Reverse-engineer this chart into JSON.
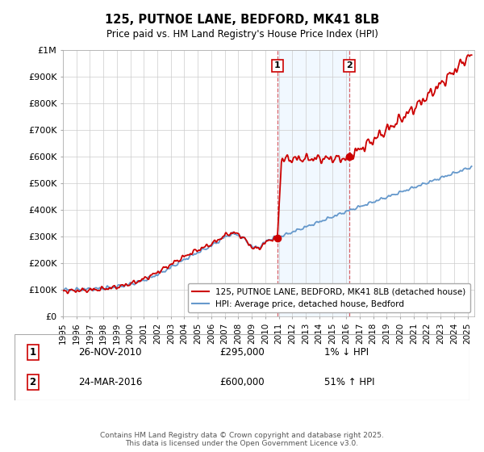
{
  "title": "125, PUTNOE LANE, BEDFORD, MK41 8LB",
  "subtitle": "Price paid vs. HM Land Registry's House Price Index (HPI)",
  "legend_line1": "125, PUTNOE LANE, BEDFORD, MK41 8LB (detached house)",
  "legend_line2": "HPI: Average price, detached house, Bedford",
  "sale1_label": "1",
  "sale1_date": "26-NOV-2010",
  "sale1_price": "£295,000",
  "sale1_hpi": "1% ↓ HPI",
  "sale1_year": 2010.9,
  "sale1_value": 295000,
  "sale2_label": "2",
  "sale2_date": "24-MAR-2016",
  "sale2_price": "£600,000",
  "sale2_hpi": "51% ↑ HPI",
  "sale2_year": 2016.23,
  "sale2_value": 600000,
  "ylim": [
    0,
    1000000
  ],
  "xlim": [
    1995,
    2025.5
  ],
  "yticks": [
    0,
    100000,
    200000,
    300000,
    400000,
    500000,
    600000,
    700000,
    800000,
    900000,
    1000000
  ],
  "ytick_labels": [
    "£0",
    "£100K",
    "£200K",
    "£300K",
    "£400K",
    "£500K",
    "£600K",
    "£700K",
    "£800K",
    "£900K",
    "£1M"
  ],
  "red_color": "#cc0000",
  "blue_color": "#6699cc",
  "shade_color": "#ddeeff",
  "vline_color": "#cc0000",
  "footer": "Contains HM Land Registry data © Crown copyright and database right 2025.\nThis data is licensed under the Open Government Licence v3.0.",
  "bg_color": "#ffffff",
  "grid_color": "#cccccc"
}
